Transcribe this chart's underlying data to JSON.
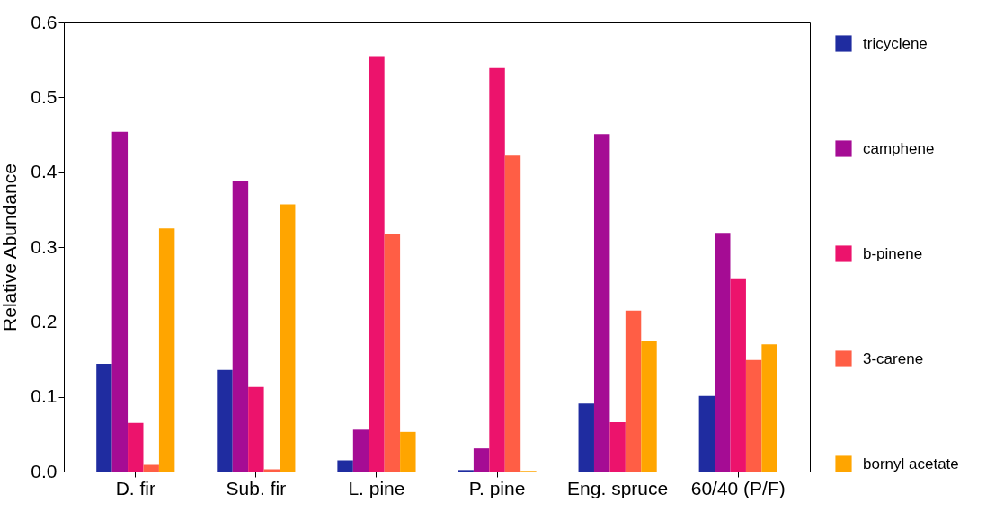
{
  "chart_data": {
    "type": "bar",
    "ylabel": "Relative Abundance",
    "categories": [
      "D. fir",
      "Sub. fir",
      "L. pine",
      "P. pine",
      "Eng. spruce",
      "60/40 (P/F)"
    ],
    "ylim": [
      0,
      0.6
    ],
    "yticks": [
      {
        "value": 0,
        "label": "0.0"
      },
      0.1,
      0.2,
      0.3,
      0.4,
      0.5,
      0.6
    ],
    "legend": "right",
    "grid": false,
    "series": [
      {
        "name": "tricyclene",
        "color": "#1f2ca0",
        "values": [
          0.144,
          0.136,
          0.015,
          0.002,
          0.091,
          0.101
        ]
      },
      {
        "name": "camphene",
        "color": "#a50c94",
        "values": [
          0.454,
          0.388,
          0.056,
          0.031,
          0.451,
          0.319
        ]
      },
      {
        "name": "b-pinene",
        "color": "#ec136c",
        "values": [
          0.065,
          0.113,
          0.555,
          0.539,
          0.066,
          0.257
        ]
      },
      {
        "name": "3-carene",
        "color": "#ff5e45",
        "values": [
          0.009,
          0.003,
          0.317,
          0.422,
          0.215,
          0.149
        ]
      },
      {
        "name": "bornyl acetate",
        "color": "#ffa500",
        "values": [
          0.325,
          0.357,
          0.053,
          0.001,
          0.174,
          0.17
        ]
      }
    ]
  }
}
